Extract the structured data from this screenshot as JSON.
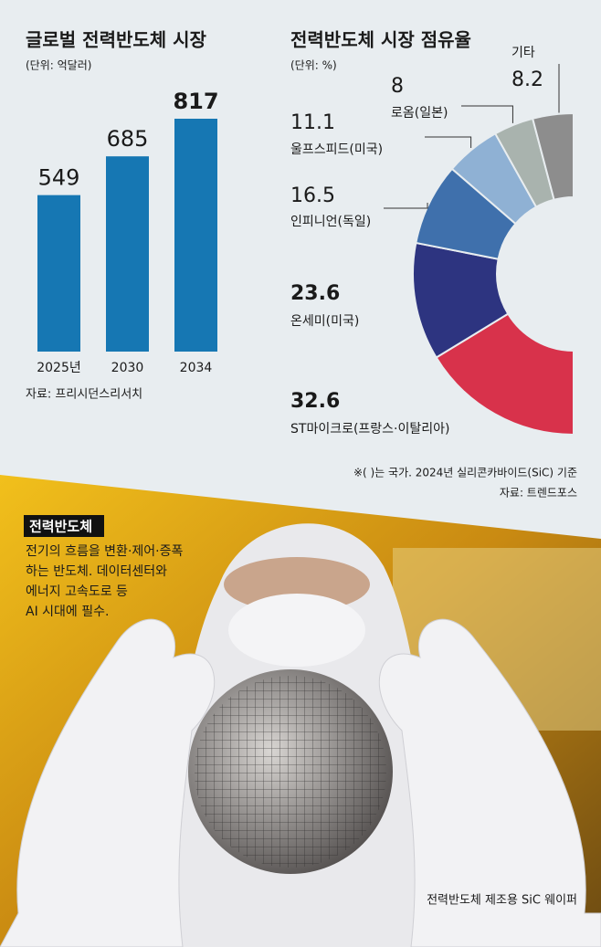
{
  "chart_data": [
    {
      "type": "bar",
      "title": "글로벌 전력반도체 시장",
      "subtitle": "(단위: 억달러)",
      "categories": [
        "2025년",
        "2030",
        "2034"
      ],
      "values": [
        549,
        685,
        817
      ],
      "color": "#1677b3",
      "source": "자료: 프리시던스리서치"
    },
    {
      "type": "donut",
      "title": "전력반도체 시장 점유율",
      "subtitle": "(단위: %)",
      "categories": [
        "ST마이크로(프랑스·이탈리아)",
        "온세미(미국)",
        "인피니언(독일)",
        "울프스피드(미국)",
        "로옴(일본)",
        "기타"
      ],
      "values": [
        32.6,
        23.6,
        16.5,
        11.1,
        8,
        8.2
      ],
      "colors": [
        "#d8324b",
        "#2d3480",
        "#3f70ac",
        "#8fb1d4",
        "#a9b3ae",
        "#8d8d8d"
      ],
      "note": "※( )는 국가. 2024년 실리콘카바이드(SiC) 기준",
      "source": "자료: 트렌드포스"
    }
  ],
  "photo": {
    "box_title": "전력반도체",
    "box_lines": [
      "전기의 흐름을 변환·제어·증폭",
      "하는 반도체. 데이터센터와",
      "에너지 고속도로 등",
      "AI 시대에 필수."
    ],
    "caption": "전력반도체 제조용 SiC 웨이퍼"
  }
}
